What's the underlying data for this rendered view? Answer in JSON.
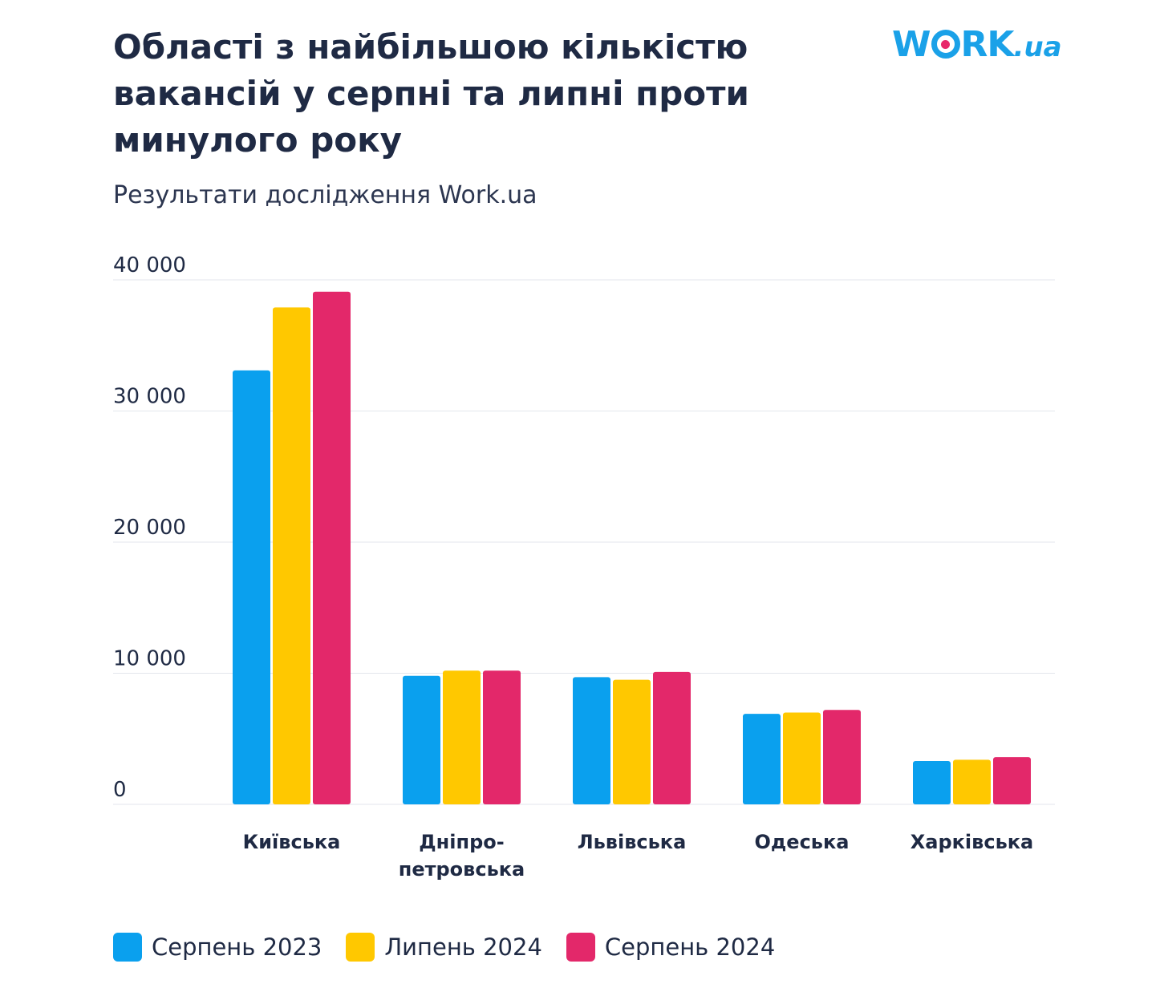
{
  "header": {
    "title": "Області з найбільшою кількістю\nвакансій у серпні та липні проти\nминулого року",
    "subtitle": "Результати дослідження Work.ua"
  },
  "logo": {
    "text_w": "W",
    "text_rk": "RK",
    "text_tld": ".ua",
    "color": "#1aa1e8",
    "dot_color": "#e8286a"
  },
  "chart_data": {
    "type": "bar",
    "categories": [
      "Київська",
      "Дніпро-\nпетровська",
      "Львівська",
      "Одеська",
      "Харківська"
    ],
    "series": [
      {
        "name": "Серпень 2023",
        "color": "#0aa0ee",
        "values": [
          33100,
          9800,
          9700,
          6900,
          3300
        ]
      },
      {
        "name": "Липень 2024",
        "color": "#ffc800",
        "values": [
          37900,
          10200,
          9500,
          7000,
          3400
        ]
      },
      {
        "name": "Серпень 2024",
        "color": "#e3286a",
        "values": [
          39100,
          10200,
          10100,
          7200,
          3600
        ]
      }
    ],
    "ylim": [
      0,
      40000
    ],
    "yticks": [
      "0",
      "10 000",
      "20 000",
      "30 000",
      "40 000"
    ],
    "ytick_values": [
      0,
      10000,
      20000,
      30000,
      40000
    ],
    "grid": true,
    "legend_position": "bottom-left"
  }
}
